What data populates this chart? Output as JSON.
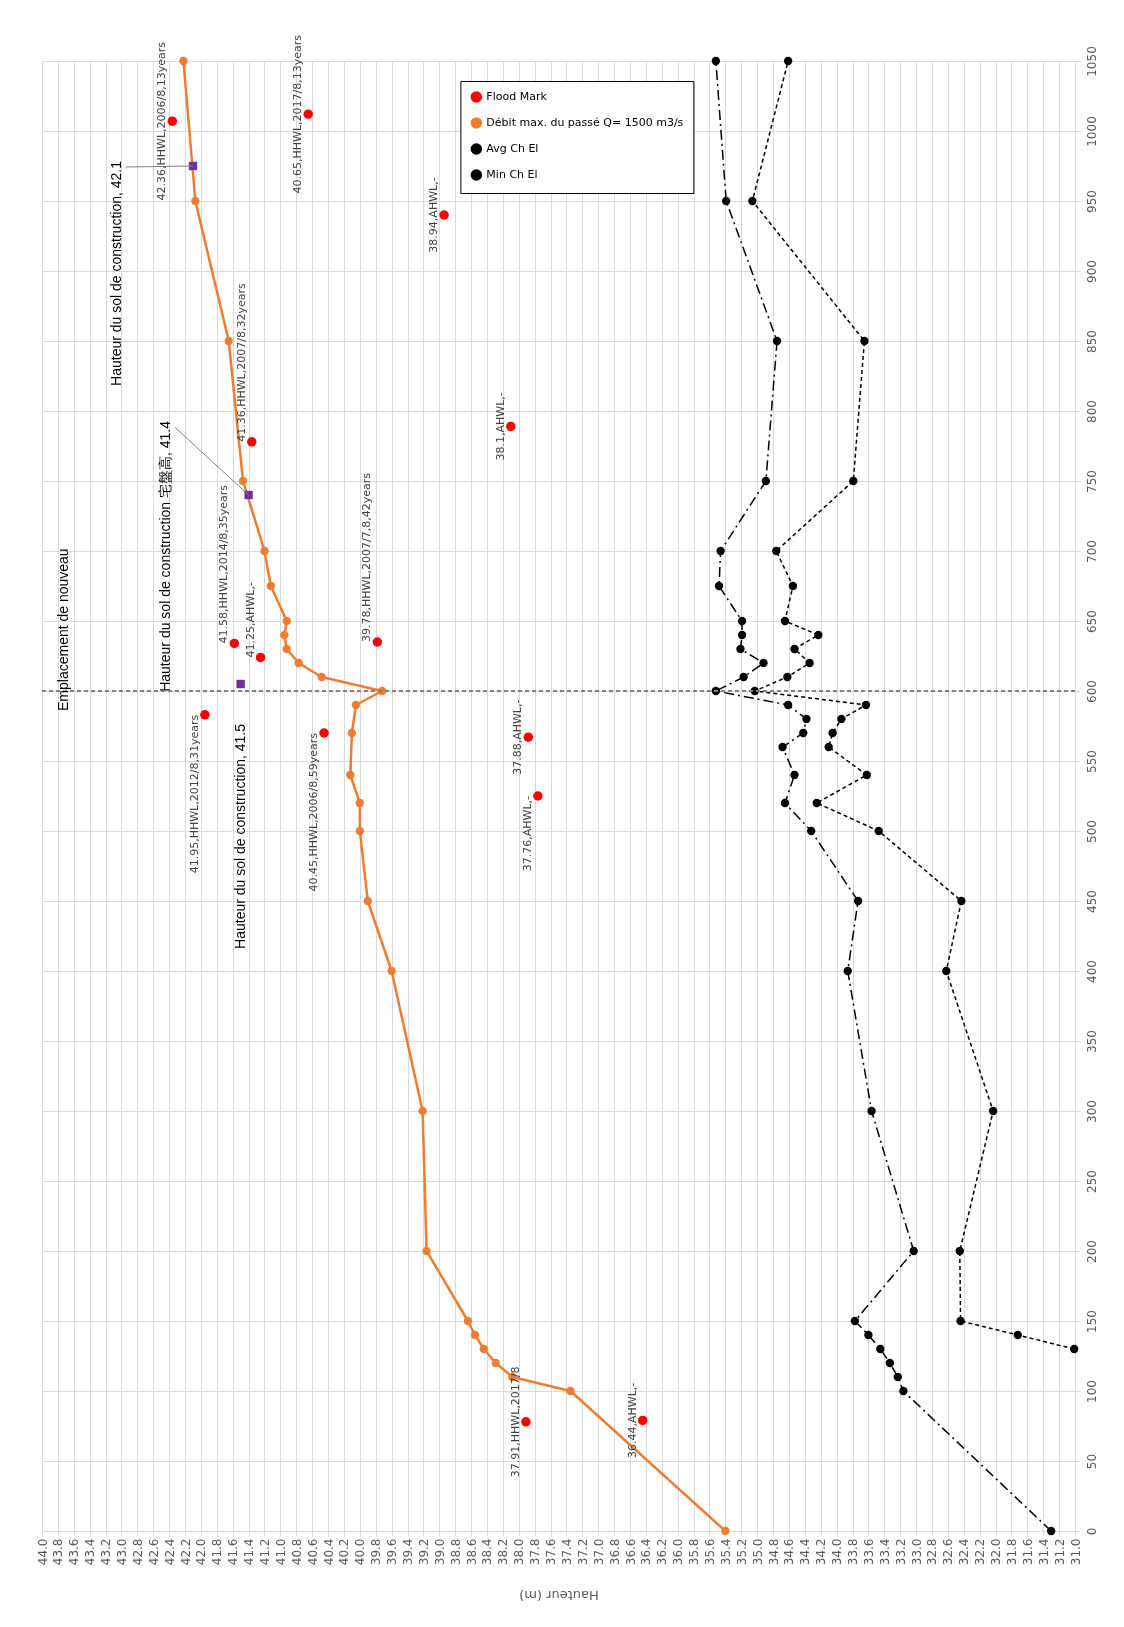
{
  "chart_data": {
    "type": "line",
    "xlabel": "Hauteur (m)",
    "xlim": [
      44,
      31
    ],
    "xticks": [
      {
        "value": 44,
        "label": "44.0"
      },
      43.8,
      43.6,
      43.4,
      43.2,
      {
        "value": 43,
        "label": "43.0"
      },
      42.8,
      42.6,
      42.4,
      42.2,
      {
        "value": 42,
        "label": "42.0"
      },
      41.8,
      41.6,
      41.4,
      41.2,
      {
        "value": 41,
        "label": "41.0"
      },
      40.8,
      40.6,
      40.4,
      40.2,
      {
        "value": 40,
        "label": "40.0"
      },
      39.8,
      39.6,
      39.4,
      39.2,
      {
        "value": 39,
        "label": "39.0"
      },
      38.8,
      38.6,
      38.4,
      38.2,
      {
        "value": 38,
        "label": "38.0"
      },
      37.8,
      37.6,
      37.4,
      37.2,
      {
        "value": 37,
        "label": "37.0"
      },
      36.8,
      36.6,
      36.4,
      36.2,
      {
        "value": 36,
        "label": "36.0"
      },
      35.8,
      35.6,
      35.4,
      35.2,
      {
        "value": 35,
        "label": "35.0"
      },
      34.8,
      34.6,
      34.4,
      34.2,
      {
        "value": 34,
        "label": "34.0"
      },
      33.8,
      33.6,
      33.4,
      33.2,
      {
        "value": 33,
        "label": "33.0"
      },
      32.8,
      32.6,
      32.4,
      32.2,
      {
        "value": 32,
        "label": "32.0"
      },
      31.8,
      31.6,
      31.4,
      31.2,
      {
        "value": 31,
        "label": "31.0"
      }
    ],
    "ylim": [
      0,
      1050
    ],
    "yticks": [
      0,
      50,
      100,
      150,
      200,
      250,
      300,
      350,
      400,
      450,
      500,
      550,
      600,
      650,
      700,
      750,
      800,
      850,
      900,
      950,
      1000,
      1050
    ],
    "grid": true,
    "legend": "top",
    "series": [
      {
        "name": "Flood Mark",
        "type": "scatter",
        "marker": "circle",
        "color": "#ff0000",
        "x": [
          42.36,
          40.65,
          38.94,
          38.1,
          41.36,
          41.95,
          41.58,
          41.25,
          40.45,
          39.78,
          37.88,
          37.76,
          37.91,
          36.44
        ],
        "values": [
          1007,
          1012,
          940,
          789,
          778,
          583,
          634,
          624,
          570,
          635,
          567,
          525,
          78,
          79
        ]
      },
      {
        "name": "Débit max. du passé Q= 1500 m3/s",
        "marker": "circle",
        "line_style": "solid",
        "color": "#ed7d31",
        "x": [
          35.4,
          37.35,
          38.08,
          38.29,
          38.44,
          38.55,
          38.64,
          39.16,
          39.21,
          39.6,
          39.9,
          40.0,
          40.0,
          40.12,
          40.1,
          40.05,
          39.72,
          40.48,
          40.77,
          40.92,
          40.95,
          40.92,
          41.12,
          41.2,
          41.47,
          41.65,
          42.07,
          42.22
        ],
        "values": [
          0,
          100,
          110,
          120,
          130,
          140,
          150,
          200,
          300,
          400,
          450,
          500,
          520,
          540,
          570,
          590,
          600,
          610,
          620,
          630,
          640,
          650,
          675,
          700,
          750,
          850,
          950,
          1050
        ]
      },
      {
        "name": "Avg Ch El",
        "marker": "circle",
        "line_style": "dashed",
        "color": "#000000",
        "x": [
          31.3,
          33.16,
          33.23,
          33.33,
          33.45,
          33.6,
          33.77,
          33.03,
          33.56,
          33.86,
          33.73,
          34.32,
          34.65,
          34.53,
          34.68,
          34.42,
          34.38,
          34.61,
          35.52,
          35.17,
          34.92,
          35.21,
          35.19,
          35.19,
          35.48,
          35.46,
          34.89,
          34.75,
          35.39,
          35.52
        ],
        "values": [
          0,
          100,
          110,
          120,
          130,
          140,
          150,
          200,
          300,
          400,
          450,
          500,
          520,
          540,
          560,
          570,
          580,
          590,
          600,
          610,
          620,
          630,
          640,
          650,
          675,
          700,
          750,
          850,
          950,
          1050
        ]
      },
      {
        "name": "Min Ch El",
        "marker": "circle",
        "line_style": "dotted",
        "color": "#000000",
        "x": [
          31.01,
          31.72,
          32.44,
          32.45,
          32.03,
          32.62,
          32.43,
          33.47,
          34.25,
          33.62,
          34.1,
          34.05,
          33.94,
          33.63,
          35.03,
          34.62,
          34.34,
          34.53,
          34.23,
          34.65,
          34.55,
          34.76,
          33.79,
          33.65,
          35.06,
          34.61
        ],
        "values": [
          130,
          140,
          150,
          200,
          300,
          400,
          450,
          500,
          520,
          540,
          560,
          570,
          580,
          590,
          600,
          610,
          620,
          630,
          640,
          650,
          675,
          700,
          750,
          850,
          950,
          1050
        ]
      },
      {
        "type": "scatter",
        "marker": "square",
        "color": "#7030a0",
        "x": [
          42.1,
          41.4,
          41.5
        ],
        "values": [
          975,
          740,
          605
        ]
      }
    ],
    "ref_lines": [
      {
        "axis": "y",
        "value": 600,
        "label": "Emplacement de nouveau",
        "color": "#808080",
        "line_style": "dotted"
      }
    ],
    "annotations": [
      {
        "text": "42.36,HHWL,2006/8,13years",
        "x": 42.36,
        "y": 1007
      },
      {
        "text": "40.65,HHWL,2017/8,13years",
        "x": 40.65,
        "y": 1012
      },
      {
        "text": "38.94,AHWL,-",
        "x": 38.94,
        "y": 940
      },
      {
        "text": "38.1,AHWL,-",
        "x": 38.1,
        "y": 789
      },
      {
        "text": "41.36,HHWL,2007/8,32years",
        "x": 41.36,
        "y": 778
      },
      {
        "text": "41.95,HHWL,2012/8,31years",
        "x": 41.95,
        "y": 583
      },
      {
        "text": "41.58,HHWL,2014/8,35years",
        "x": 41.58,
        "y": 634
      },
      {
        "text": "41.25,AHWL,-",
        "x": 41.25,
        "y": 624
      },
      {
        "text": "40.45,HHWL,2006/8,59years",
        "x": 40.45,
        "y": 570
      },
      {
        "text": "39.78,HHWL,2007/7,8,42years",
        "x": 39.78,
        "y": 635
      },
      {
        "text": "37.88,AHWL,-",
        "x": 37.88,
        "y": 567
      },
      {
        "text": "37.76,AHWL,-",
        "x": 37.76,
        "y": 525
      },
      {
        "text": "37.91,HHWL,2017/8",
        "x": 37.91,
        "y": 78
      },
      {
        "text": "36.44,AHWL,-",
        "x": 36.44,
        "y": 79
      },
      {
        "text": "Hauteur du sol de construction, 42.1",
        "x": 42.1,
        "y": 975
      },
      {
        "text": "Hauteur du sol de construction 宅盤高, 41.4",
        "x": 41.4,
        "y": 740
      },
      {
        "text": "Hauteur du sol de construction, 41.5",
        "x": 41.5,
        "y": 605
      }
    ]
  }
}
